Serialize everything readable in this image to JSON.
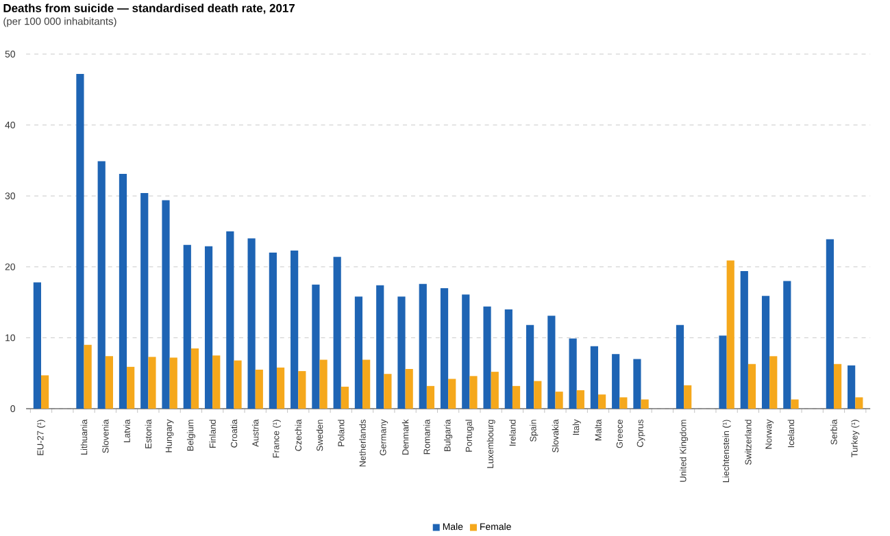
{
  "chart_data": {
    "type": "bar",
    "title": "Deaths from suicide — standardised death rate, 2017",
    "subtitle": "(per 100 000 inhabitants)",
    "categories": [
      "EU-27 (¹)",
      null,
      "Lithuania",
      "Slovenia",
      "Latvia",
      "Estonia",
      "Hungary",
      "Belgium",
      "Finland",
      "Croatia",
      "Austria",
      "France (¹)",
      "Czechia",
      "Sweden",
      "Poland",
      "Netherlands",
      "Germany",
      "Denmark",
      "Romania",
      "Bulgaria",
      "Portugal",
      "Luxembourg",
      "Ireland",
      "Spain",
      "Slovakia",
      "Italy",
      "Malta",
      "Greece",
      "Cyprus",
      null,
      "United Kingdom",
      null,
      "Liechtenstein (¹)",
      "Switzerland",
      "Norway",
      "Iceland",
      null,
      "Serbia",
      "Turkey (¹)"
    ],
    "series": [
      {
        "name": "Male",
        "color": "#1e64b4",
        "values": [
          17.8,
          null,
          47.2,
          34.9,
          33.1,
          30.4,
          29.4,
          23.1,
          22.9,
          25.0,
          24.0,
          22.0,
          22.3,
          17.5,
          21.4,
          15.8,
          17.4,
          15.8,
          17.6,
          17.0,
          16.1,
          14.4,
          14.0,
          11.8,
          13.1,
          9.9,
          8.8,
          7.7,
          7.0,
          null,
          11.8,
          null,
          10.3,
          19.4,
          15.9,
          18.0,
          null,
          23.9,
          6.1
        ]
      },
      {
        "name": "Female",
        "color": "#f5a81c",
        "values": [
          4.7,
          null,
          9.0,
          7.4,
          5.9,
          7.3,
          7.2,
          8.5,
          7.5,
          6.8,
          5.5,
          5.8,
          5.3,
          6.9,
          3.1,
          6.9,
          4.9,
          5.6,
          3.2,
          4.2,
          4.6,
          5.2,
          3.2,
          3.9,
          2.4,
          2.6,
          2.0,
          1.6,
          1.3,
          null,
          3.3,
          null,
          20.9,
          6.3,
          7.4,
          1.3,
          null,
          6.3,
          1.6
        ]
      }
    ],
    "ylim": [
      0,
      50
    ],
    "yticks": [
      0,
      10,
      20,
      30,
      40,
      50
    ],
    "grid": "y",
    "legend": "bottom"
  }
}
